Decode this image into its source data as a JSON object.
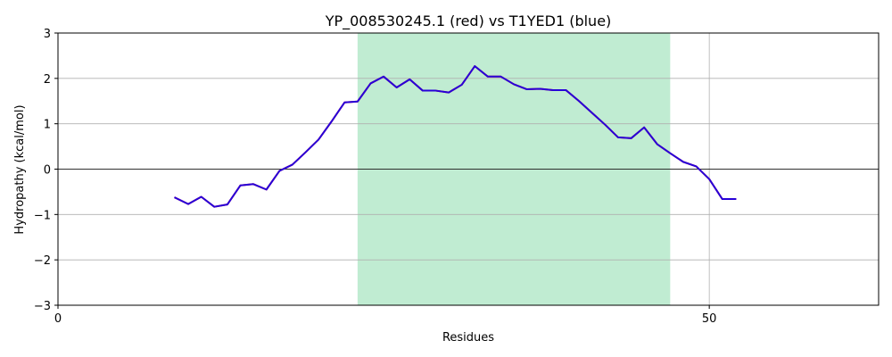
{
  "chart_data": {
    "type": "line",
    "title": "YP_008530245.1 (red) vs T1YED1 (blue)",
    "xlabel": "Residues",
    "ylabel": "Hydropathy (kcal/mol)",
    "xlim": [
      0,
      63
    ],
    "ylim": [
      -3,
      3
    ],
    "xticks": [
      0,
      50
    ],
    "yticks": [
      -3,
      -2,
      -1,
      0,
      1,
      2,
      3
    ],
    "grid": true,
    "highlight_region": {
      "x_start": 23,
      "x_end": 47,
      "color": "#c0ecd2"
    },
    "zero_line": true,
    "series": [
      {
        "color": "#ff0000",
        "x": [
          9,
          10,
          11,
          12,
          13,
          14,
          15,
          16,
          17,
          18,
          19,
          20,
          21,
          22,
          23,
          24,
          25,
          26,
          27,
          28,
          29,
          30,
          31,
          32,
          33,
          34,
          35,
          36,
          37,
          38,
          39,
          40,
          41,
          42,
          43,
          44,
          45,
          46,
          47,
          48,
          49,
          50,
          51,
          52
        ],
        "values": [
          -0.63,
          -0.77,
          -0.61,
          -0.83,
          -0.78,
          -0.36,
          -0.33,
          -0.45,
          -0.04,
          0.1,
          0.37,
          0.65,
          1.05,
          1.47,
          1.49,
          1.89,
          2.04,
          1.8,
          1.98,
          1.73,
          1.73,
          1.69,
          1.86,
          2.27,
          2.04,
          2.04,
          1.87,
          1.76,
          1.77,
          1.74,
          1.74,
          1.5,
          1.24,
          0.98,
          0.7,
          0.68,
          0.92,
          0.55,
          0.35,
          0.16,
          0.06,
          -0.22,
          -0.66,
          -0.66
        ]
      },
      {
        "color": "#0000ff",
        "x": [
          9,
          10,
          11,
          12,
          13,
          14,
          15,
          16,
          17,
          18,
          19,
          20,
          21,
          22,
          23,
          24,
          25,
          26,
          27,
          28,
          29,
          30,
          31,
          32,
          33,
          34,
          35,
          36,
          37,
          38,
          39,
          40,
          41,
          42,
          43,
          44,
          45,
          46,
          47,
          48,
          49,
          50,
          51,
          52
        ],
        "values": [
          -0.63,
          -0.77,
          -0.61,
          -0.83,
          -0.78,
          -0.36,
          -0.33,
          -0.45,
          -0.04,
          0.1,
          0.37,
          0.65,
          1.05,
          1.47,
          1.49,
          1.89,
          2.04,
          1.8,
          1.98,
          1.73,
          1.73,
          1.69,
          1.86,
          2.27,
          2.04,
          2.04,
          1.87,
          1.76,
          1.77,
          1.74,
          1.74,
          1.5,
          1.24,
          0.98,
          0.7,
          0.68,
          0.92,
          0.55,
          0.35,
          0.16,
          0.06,
          -0.22,
          -0.66,
          -0.66
        ]
      }
    ]
  }
}
